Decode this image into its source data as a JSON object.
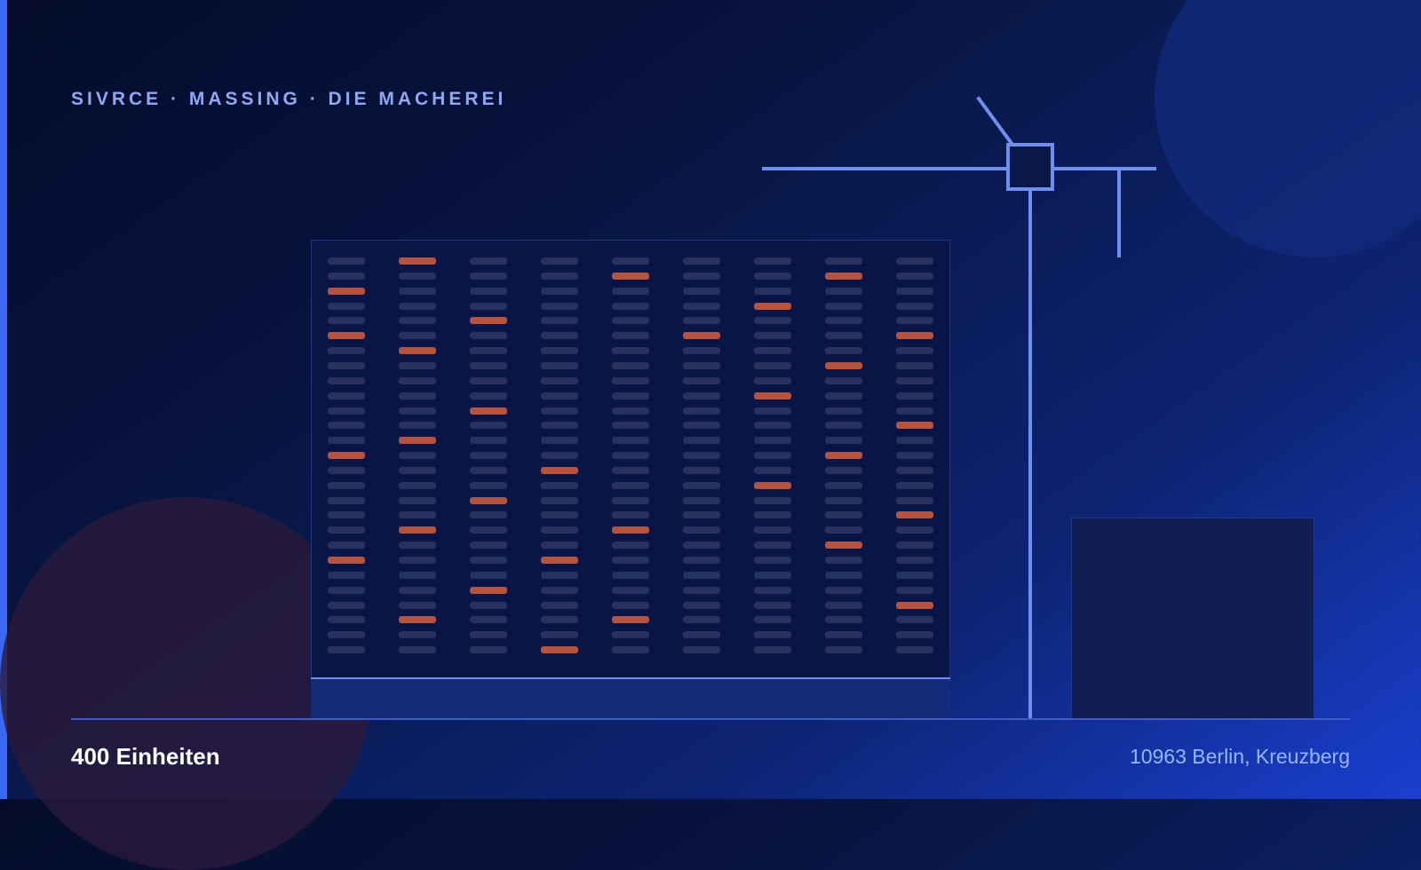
{
  "header": {
    "eyebrow": "SIVRCE · MASSING · DIE MACHEREI"
  },
  "footer": {
    "units": "400 Einheiten",
    "location": "10963 Berlin, Kreuzberg"
  },
  "facade": {
    "columns": 9,
    "rows": 27,
    "lit_windows": [
      [
        2,
        5,
        13,
        20
      ],
      [
        0,
        6,
        12,
        18,
        24
      ],
      [
        4,
        10,
        16,
        22
      ],
      [
        14,
        20,
        26
      ],
      [
        1,
        18,
        24
      ],
      [
        5
      ],
      [
        3,
        9,
        15
      ],
      [
        1,
        7,
        13,
        19
      ],
      [
        5,
        11,
        17,
        23
      ]
    ]
  },
  "colors": {
    "background_top": "#050c2b",
    "background_bottom": "#1a3fd0",
    "accent": "#3a68f5",
    "window": "#27325f",
    "window_lit": "#b6533f",
    "crane": "#6e8ff0"
  }
}
